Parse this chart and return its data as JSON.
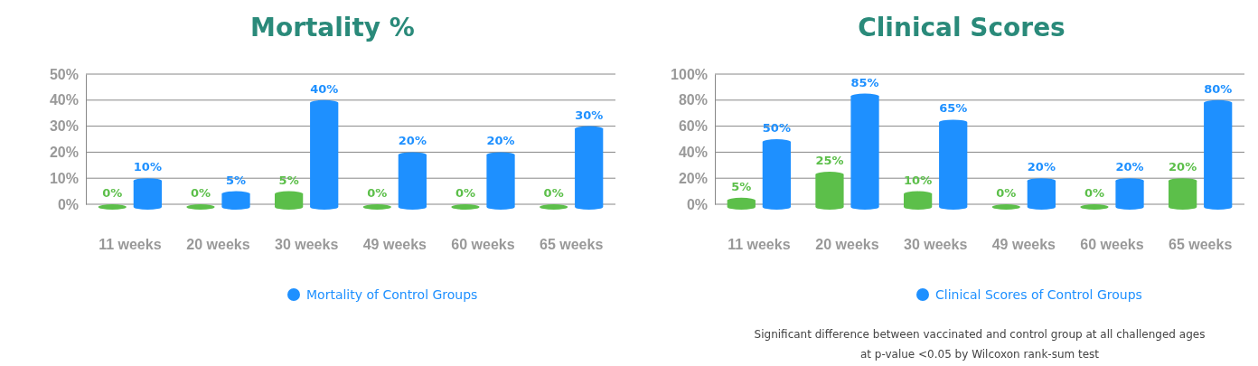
{
  "chart_data": [
    {
      "type": "bar",
      "title": "Mortality %",
      "categories": [
        "11 weeks",
        "20 weeks",
        "30 weeks",
        "49 weeks",
        "60 weeks",
        "65 weeks"
      ],
      "series": [
        {
          "color": "#5cbf4a",
          "values": [
            0,
            0,
            5,
            0,
            0,
            0
          ],
          "value_labels": [
            "0%",
            "0%",
            "5%",
            "0%",
            "0%",
            "0%"
          ]
        },
        {
          "name": "Mortality of Control Groups",
          "color": "#1e90ff",
          "values": [
            10,
            5,
            40,
            20,
            20,
            30
          ],
          "value_labels": [
            "10%",
            "5%",
            "40%",
            "20%",
            "20%",
            "30%"
          ]
        }
      ],
      "ylim": [
        0,
        50
      ],
      "yticks": [
        {
          "value": 0,
          "label": "0%"
        },
        {
          "value": 10,
          "label": "10%"
        },
        {
          "value": 20,
          "label": "20%"
        },
        {
          "value": 30,
          "label": "30%"
        },
        {
          "value": 40,
          "label": "40%"
        },
        {
          "value": 50,
          "label": "50%"
        }
      ],
      "grid": "y",
      "legend": "bottom"
    },
    {
      "type": "bar",
      "title": "Clinical Scores",
      "categories": [
        "11 weeks",
        "20 weeks",
        "30 weeks",
        "49 weeks",
        "60 weeks",
        "65 weeks"
      ],
      "series": [
        {
          "color": "#5cbf4a",
          "values": [
            5,
            25,
            10,
            0,
            0,
            20
          ],
          "value_labels": [
            "5%",
            "25%",
            "10%",
            "0%",
            "0%",
            "20%"
          ]
        },
        {
          "name": "Clinical Scores of Control Groups",
          "color": "#1e90ff",
          "values": [
            50,
            85,
            65,
            20,
            20,
            80
          ],
          "value_labels": [
            "50%",
            "85%",
            "65%",
            "20%",
            "20%",
            "80%"
          ]
        }
      ],
      "ylim": [
        0,
        100
      ],
      "yticks": [
        {
          "value": 0,
          "label": "0%"
        },
        {
          "value": 20,
          "label": "20%"
        },
        {
          "value": 40,
          "label": "40%"
        },
        {
          "value": 60,
          "label": "60%"
        },
        {
          "value": 80,
          "label": "80%"
        },
        {
          "value": 100,
          "label": "100%"
        }
      ],
      "grid": "y",
      "legend": "bottom",
      "annotations": [
        "Significant difference between vaccinated and control group at all challenged ages",
        "at p-value <0.05 by Wilcoxon rank-sum test"
      ]
    }
  ]
}
